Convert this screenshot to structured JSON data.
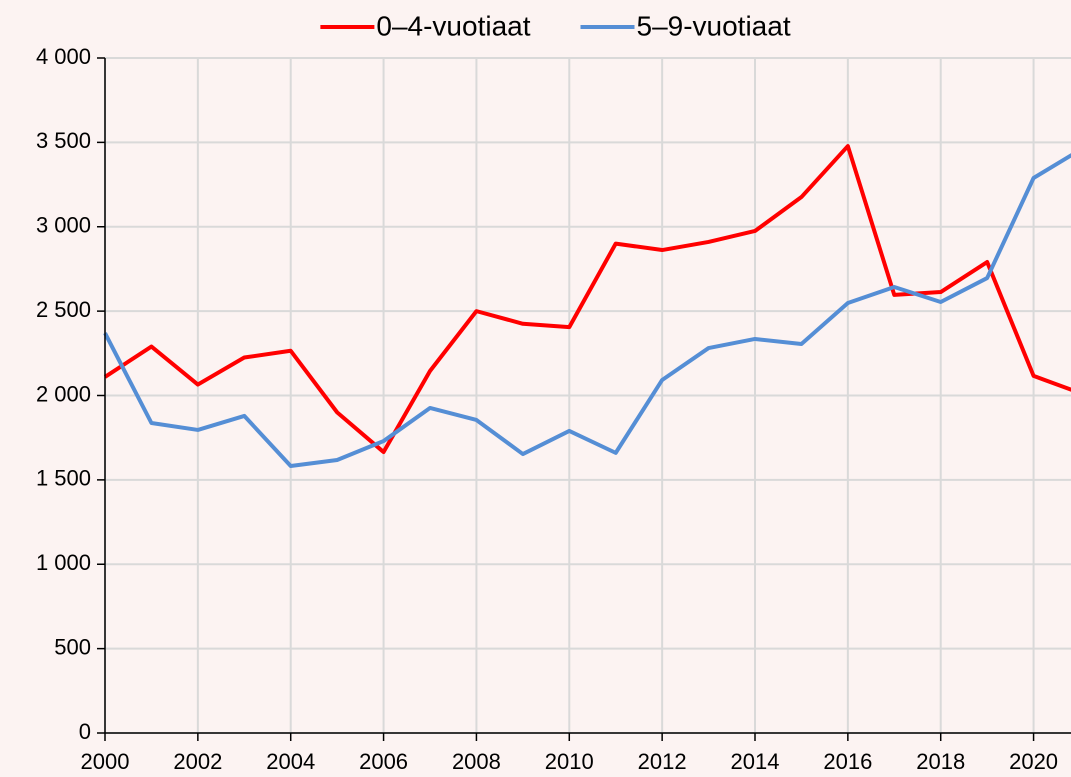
{
  "chart_data": {
    "type": "line",
    "x": [
      2000,
      2001,
      2002,
      2003,
      2004,
      2005,
      2006,
      2007,
      2008,
      2009,
      2010,
      2011,
      2012,
      2013,
      2014,
      2015,
      2016,
      2017,
      2018,
      2019,
      2020,
      2021
    ],
    "series": [
      {
        "name": "0–4-vuotiaat",
        "color": "#ff0000",
        "values": [
          2110,
          2290,
          2065,
          2225,
          2265,
          1900,
          1665,
          2145,
          2500,
          2425,
          2405,
          2900,
          2862,
          2910,
          2975,
          3176,
          3478,
          2596,
          2613,
          2791,
          2116,
          2015
        ]
      },
      {
        "name": "5–9-vuotiaat",
        "color": "#558ed5",
        "values": [
          2370,
          1837,
          1796,
          1879,
          1582,
          1618,
          1730,
          1926,
          1855,
          1653,
          1790,
          1660,
          2092,
          2281,
          2335,
          2305,
          2548,
          2643,
          2554,
          2696,
          3289,
          3455
        ]
      }
    ],
    "xlim": [
      2000,
      2021
    ],
    "xticks": [
      2000,
      2002,
      2004,
      2006,
      2008,
      2010,
      2012,
      2014,
      2016,
      2018,
      2020
    ],
    "ylim": [
      0,
      4000
    ],
    "yticks": [
      0,
      500,
      {
        "value": 1000,
        "label": "1 000"
      },
      {
        "value": 1500,
        "label": "1 500"
      },
      {
        "value": 2000,
        "label": "2 000"
      },
      {
        "value": 2500,
        "label": "2 500"
      },
      {
        "value": 3000,
        "label": "3 000"
      },
      {
        "value": 3500,
        "label": "3 500"
      },
      {
        "value": 4000,
        "label": "4 000"
      }
    ],
    "grid": true,
    "legend": "top"
  }
}
